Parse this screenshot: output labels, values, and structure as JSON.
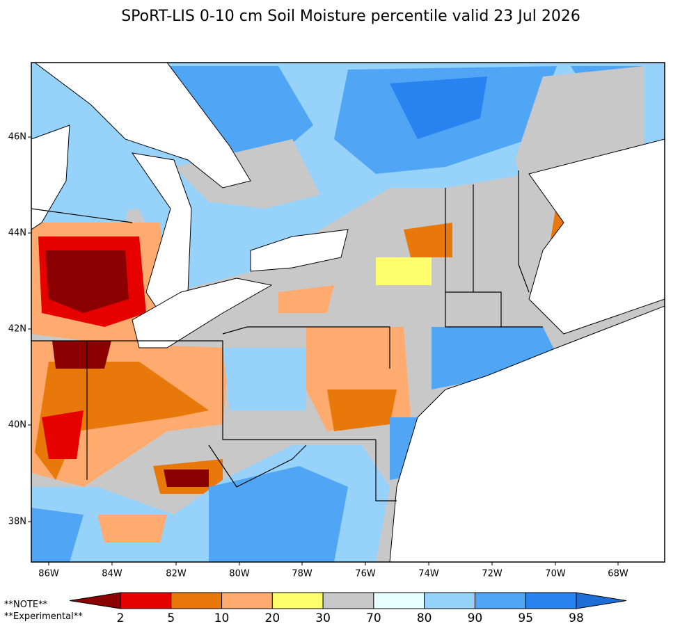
{
  "title": "SPoRT-LIS 0-10 cm Soil Moisture percentile valid 23 Jul 2026",
  "map": {
    "lat_labels": [
      "46N",
      "44N",
      "42N",
      "40N",
      "38N"
    ],
    "lon_labels": [
      "86W",
      "84W",
      "82W",
      "80W",
      "78W",
      "76W",
      "74W",
      "72W",
      "70W",
      "68W"
    ]
  },
  "notes": [
    "**NOTE**",
    "**Experimental**"
  ],
  "colorbar": {
    "bounds": [
      2,
      5,
      10,
      20,
      30,
      70,
      80,
      90,
      95,
      98
    ],
    "colors": [
      "#8b0000",
      "#e60000",
      "#e8780a",
      "#ffaa6e",
      "#ffff6e",
      "#c8c8c8",
      "#e6ffff",
      "#96d2fa",
      "#50a5f5",
      "#2882f0",
      "#1e6ed8"
    ]
  }
}
